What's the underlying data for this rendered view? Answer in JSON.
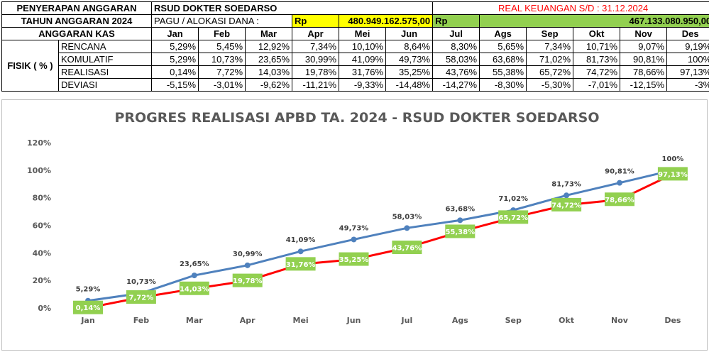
{
  "header": {
    "title_line1": "PENYERAPAN ANGGARAN",
    "title_line2": "TAHUN ANGGARAN 2024",
    "hospital": "RSUD DOKTER SOEDARSO",
    "pagu_label": "PAGU / ALOKASI DANA :",
    "pagu_currency": "Rp",
    "pagu_value": "480.949.162.575,00",
    "real_label": "REAL KEUANGAN S/D : 31.12.2024",
    "real_currency": "Rp",
    "real_value": "467.133.080.950,00",
    "anggaran_kas": "ANGGARAN KAS",
    "fisik": "FISIK ( % )"
  },
  "months": [
    "Jan",
    "Feb",
    "Mar",
    "Apr",
    "Mei",
    "Jun",
    "Jul",
    "Ags",
    "Sep",
    "Okt",
    "Nov",
    "Des"
  ],
  "rows": [
    {
      "label": "RENCANA",
      "values": [
        "5,29%",
        "5,45%",
        "12,92%",
        "7,34%",
        "10,10%",
        "8,64%",
        "8,30%",
        "5,65%",
        "7,34%",
        "10,71%",
        "9,07%",
        "9,19%"
      ]
    },
    {
      "label": "KOMULATIF",
      "values": [
        "5,29%",
        "10,73%",
        "23,65%",
        "30,99%",
        "41,09%",
        "49,73%",
        "58,03%",
        "63,68%",
        "71,02%",
        "81,73%",
        "90,81%",
        "100%"
      ]
    },
    {
      "label": "REALISASI",
      "values": [
        "0,14%",
        "7,72%",
        "14,03%",
        "19,78%",
        "31,76%",
        "35,25%",
        "43,76%",
        "55,38%",
        "65,72%",
        "74,72%",
        "78,66%",
        "97,13%"
      ]
    },
    {
      "label": "DEVIASI",
      "values": [
        "-5,15%",
        "-3,01%",
        "-9,62%",
        "-11,21%",
        "-9,33%",
        "-14,48%",
        "-14,27%",
        "-8,30%",
        "-5,30%",
        "-7,01%",
        "-12,15%",
        "-3%"
      ]
    }
  ],
  "chart_data": {
    "type": "line",
    "title": "PROGRES REALISASI APBD TA. 2024 - RSUD DOKTER SOEDARSO",
    "categories": [
      "Jan",
      "Feb",
      "Mar",
      "Apr",
      "Mei",
      "Jun",
      "Jul",
      "Ags",
      "Sep",
      "Okt",
      "Nov",
      "Des"
    ],
    "ylim": [
      0,
      120
    ],
    "yticks": [
      "0%",
      "20%",
      "40%",
      "60%",
      "80%",
      "100%",
      "120%"
    ],
    "grid": false,
    "series": [
      {
        "values": [
          5.29,
          10.73,
          23.65,
          30.99,
          41.09,
          49.73,
          58.03,
          63.68,
          71.02,
          81.73,
          90.81,
          100
        ],
        "labels": [
          "5,29%",
          "10,73%",
          "23,65%",
          "30,99%",
          "41,09%",
          "49,73%",
          "58,03%",
          "63,68%",
          "71,02%",
          "81,73%",
          "90,81%",
          "100%"
        ],
        "color": "#4f81bd"
      },
      {
        "values": [
          0.14,
          7.72,
          14.03,
          19.78,
          31.76,
          35.25,
          43.76,
          55.38,
          65.72,
          74.72,
          78.66,
          97.13
        ],
        "labels": [
          "0,14%",
          "7,72%",
          "14,03%",
          "19,78%",
          "31,76%",
          "35,25%",
          "43,76%",
          "55,38%",
          "65,72%",
          "74,72%",
          "78,66%",
          "97,13%"
        ],
        "color": "#ff0000",
        "label_bg": "#92d050"
      }
    ]
  }
}
